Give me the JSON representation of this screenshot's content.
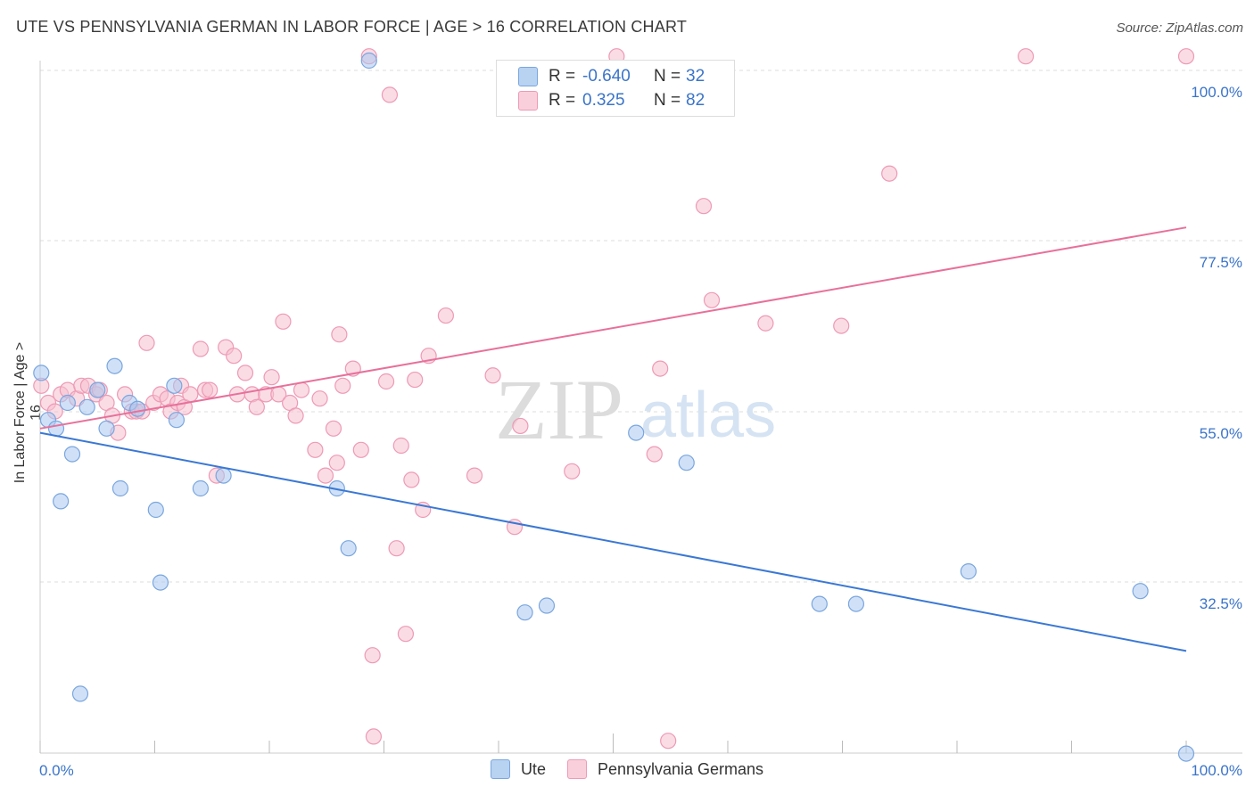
{
  "header": {
    "title": "UTE VS PENNSYLVANIA GERMAN IN LABOR FORCE | AGE > 16 CORRELATION CHART",
    "source": "Source: ZipAtlas.com"
  },
  "watermark": {
    "zip": "ZIP",
    "atlas": "atlas"
  },
  "legend_top": {
    "rows": [
      {
        "r_label": "R =",
        "r_value": "-0.640",
        "n_label": "N =",
        "n_value": "32"
      },
      {
        "r_label": "R =",
        "r_value": "0.325",
        "n_label": "N =",
        "n_value": "82"
      }
    ]
  },
  "legend_bottom": {
    "items": [
      "Ute",
      "Pennsylvania Germans"
    ]
  },
  "colors": {
    "ute_fill": "#a9c8f0",
    "ute_stroke": "#7aa6de",
    "ute_line": "#3a78d4",
    "pg_fill": "#f6bfd0",
    "pg_stroke": "#ee9ab5",
    "pg_line": "#e8709a",
    "axis_label": "#3a74c9",
    "grid": "#dddddd"
  },
  "chart_data": {
    "type": "scatter",
    "title": "UTE VS PENNSYLVANIA GERMAN IN LABOR FORCE | AGE > 16 CORRELATION CHART",
    "xlabel": "",
    "ylabel": "In Labor Force | Age > 16",
    "xlim": [
      0,
      100
    ],
    "ylim": [
      17,
      105
    ],
    "x_tick_labels": [
      "0.0%",
      "100.0%"
    ],
    "y_ticks": [
      32.5,
      55.0,
      77.5,
      100.0
    ],
    "y_tick_labels": [
      "32.5%",
      "55.0%",
      "77.5%",
      "100.0%"
    ],
    "grid": true,
    "legend_position": "top-center",
    "series": [
      {
        "name": "Ute",
        "points": [
          [
            0.1,
            66.5
          ],
          [
            0.7,
            61
          ],
          [
            1.4,
            60
          ],
          [
            2.4,
            63
          ],
          [
            2.8,
            57
          ],
          [
            1.8,
            51.5
          ],
          [
            4.1,
            62.5
          ],
          [
            5.0,
            64.5
          ],
          [
            5.8,
            60
          ],
          [
            6.5,
            67.3
          ],
          [
            7.0,
            53
          ],
          [
            7.8,
            63
          ],
          [
            8.5,
            62.3
          ],
          [
            10.1,
            50.5
          ],
          [
            10.5,
            42
          ],
          [
            11.7,
            65
          ],
          [
            11.9,
            61
          ],
          [
            14.0,
            53
          ],
          [
            16.0,
            54.5
          ],
          [
            25.9,
            53
          ],
          [
            26.9,
            46
          ],
          [
            28.7,
            103
          ],
          [
            42.3,
            38.5
          ],
          [
            44.2,
            39.3
          ],
          [
            52.0,
            59.5
          ],
          [
            56.4,
            56
          ],
          [
            68.0,
            39.5
          ],
          [
            71.2,
            39.5
          ],
          [
            81.0,
            43.3
          ],
          [
            96.0,
            41
          ],
          [
            100.0,
            22
          ],
          [
            3.5,
            29
          ]
        ]
      },
      {
        "name": "Pennsylvania Germans",
        "points": [
          [
            0.1,
            65
          ],
          [
            0.7,
            63
          ],
          [
            1.3,
            62
          ],
          [
            1.8,
            64
          ],
          [
            2.4,
            64.5
          ],
          [
            3.2,
            63.5
          ],
          [
            3.6,
            65
          ],
          [
            4.2,
            65
          ],
          [
            4.9,
            64
          ],
          [
            5.2,
            64.5
          ],
          [
            5.8,
            63
          ],
          [
            6.3,
            61.5
          ],
          [
            6.8,
            59.5
          ],
          [
            7.4,
            64
          ],
          [
            8.0,
            62
          ],
          [
            8.4,
            62
          ],
          [
            8.9,
            62
          ],
          [
            9.3,
            70
          ],
          [
            9.9,
            63
          ],
          [
            10.5,
            64
          ],
          [
            11.1,
            63.5
          ],
          [
            11.4,
            62
          ],
          [
            12.0,
            63
          ],
          [
            12.3,
            65
          ],
          [
            12.6,
            62.5
          ],
          [
            13.1,
            64
          ],
          [
            14.0,
            69.3
          ],
          [
            14.4,
            64.5
          ],
          [
            14.8,
            64.5
          ],
          [
            15.4,
            54.5
          ],
          [
            16.2,
            69.5
          ],
          [
            16.9,
            68.5
          ],
          [
            17.2,
            64
          ],
          [
            17.9,
            66.5
          ],
          [
            18.5,
            64
          ],
          [
            18.9,
            62.5
          ],
          [
            19.7,
            64
          ],
          [
            20.2,
            66
          ],
          [
            20.8,
            64
          ],
          [
            21.2,
            72.5
          ],
          [
            21.8,
            63
          ],
          [
            22.3,
            61.5
          ],
          [
            22.8,
            64.5
          ],
          [
            24.0,
            57.5
          ],
          [
            24.4,
            63.5
          ],
          [
            24.9,
            54.5
          ],
          [
            25.6,
            60
          ],
          [
            25.9,
            56
          ],
          [
            26.1,
            71
          ],
          [
            26.4,
            65
          ],
          [
            27.3,
            67
          ],
          [
            28.7,
            103.5
          ],
          [
            29.0,
            33.5
          ],
          [
            29.1,
            24
          ],
          [
            30.2,
            65.5
          ],
          [
            30.5,
            99
          ],
          [
            31.1,
            46
          ],
          [
            31.5,
            58
          ],
          [
            31.9,
            36
          ],
          [
            32.4,
            54
          ],
          [
            32.7,
            65.7
          ],
          [
            33.4,
            50.5
          ],
          [
            33.9,
            68.5
          ],
          [
            35.4,
            73.2
          ],
          [
            37.9,
            54.5
          ],
          [
            39.5,
            66.2
          ],
          [
            41.4,
            48.5
          ],
          [
            41.9,
            60.3
          ],
          [
            46.4,
            55
          ],
          [
            49.6,
            99.5
          ],
          [
            50.3,
            103.5
          ],
          [
            53.6,
            57
          ],
          [
            54.1,
            67
          ],
          [
            54.8,
            23.5
          ],
          [
            57.9,
            86
          ],
          [
            58.6,
            75
          ],
          [
            63.3,
            72.3
          ],
          [
            69.9,
            72
          ],
          [
            74.1,
            89.8
          ],
          [
            86.0,
            103.5
          ],
          [
            100.0,
            103.5
          ],
          [
            28.0,
            57.5
          ]
        ]
      }
    ],
    "trend_lines": [
      {
        "series": "Ute",
        "x": [
          0,
          100
        ],
        "y": [
          59.5,
          34
        ]
      },
      {
        "series": "Pennsylvania Germans",
        "x": [
          0,
          100
        ],
        "y": [
          60,
          83.5
        ]
      }
    ]
  }
}
